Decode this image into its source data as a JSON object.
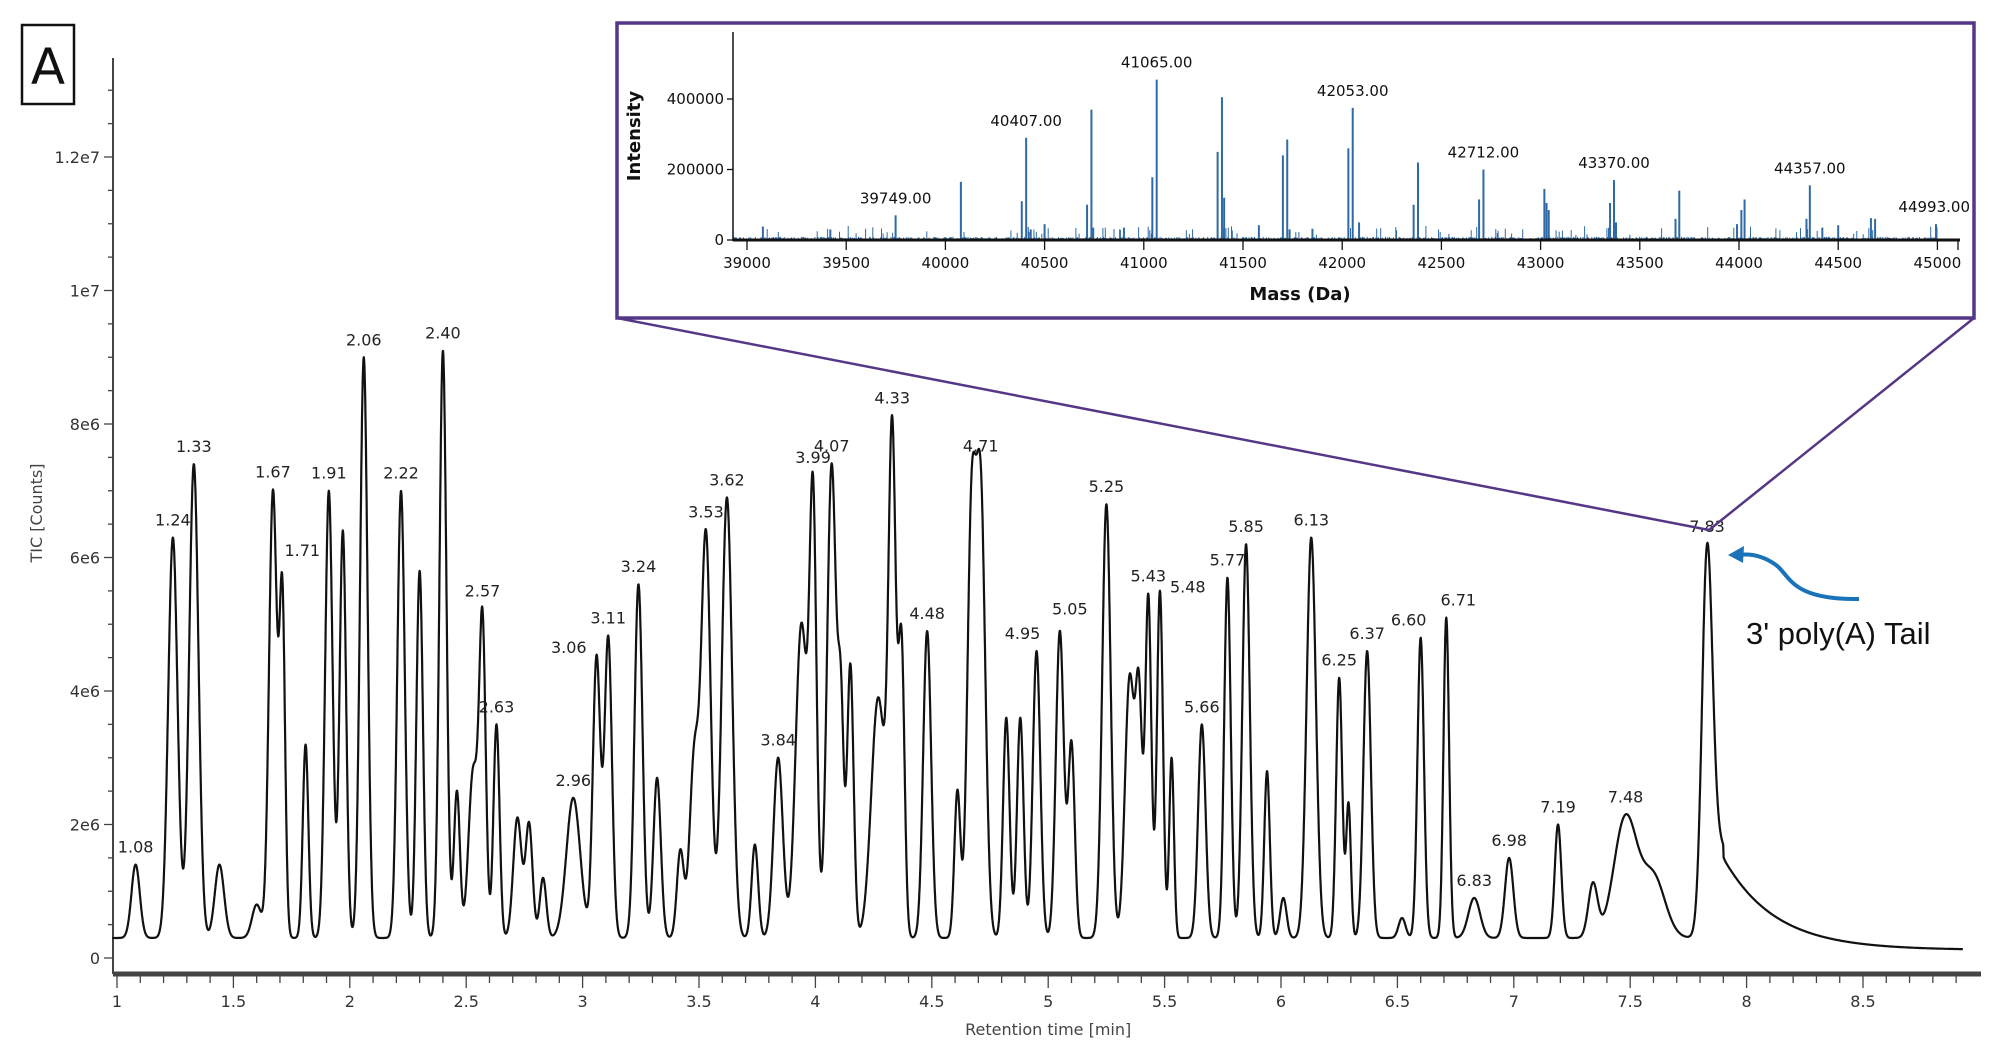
{
  "panel_label": "A",
  "annotation": {
    "text": "3' poly(A) Tail",
    "arrow_color": "#1a73b8"
  },
  "colors": {
    "trace": "#111111",
    "inset_box": "#553788",
    "spectrum": "#2f6aa6"
  },
  "chart_data": [
    {
      "type": "line",
      "title": "",
      "xlabel": "Retention time [min]",
      "ylabel": "TIC [Counts]",
      "xlim": [
        0.98,
        8.93
      ],
      "ylim": [
        0,
        13000000
      ],
      "x_ticks": [
        1,
        1.5,
        2,
        2.5,
        3,
        3.5,
        4,
        4.5,
        5,
        5.5,
        6,
        6.5,
        7,
        7.5,
        8,
        8.5
      ],
      "x_tick_labels": [
        "1",
        "1.5",
        "2",
        "2.5",
        "3",
        "3.5",
        "4",
        "4.5",
        "5",
        "5.5",
        "6",
        "6.5",
        "7",
        "7.5",
        "8",
        "8.5"
      ],
      "y_ticks": [
        0,
        2000000,
        4000000,
        6000000,
        8000000,
        10000000,
        12000000
      ],
      "y_tick_labels": [
        "0",
        "2e6",
        "4e6",
        "6e6",
        "8e6",
        "1e7",
        "1.2e7"
      ],
      "grid": false,
      "baseline_counts": 300000,
      "peaks": [
        {
          "rt": 1.08,
          "height": 1.1,
          "sigma": 0.018,
          "label": "1.08"
        },
        {
          "rt": 1.24,
          "height": 6.0,
          "sigma": 0.02,
          "label": "1.24"
        },
        {
          "rt": 1.33,
          "height": 7.1,
          "sigma": 0.02,
          "label": "1.33"
        },
        {
          "rt": 1.44,
          "height": 1.1,
          "sigma": 0.02
        },
        {
          "rt": 1.6,
          "height": 0.5,
          "sigma": 0.02
        },
        {
          "rt": 1.67,
          "height": 6.7,
          "sigma": 0.017,
          "label": "1.67"
        },
        {
          "rt": 1.71,
          "height": 5.0,
          "sigma": 0.012,
          "label": "1.71"
        },
        {
          "rt": 1.81,
          "height": 2.9,
          "sigma": 0.012
        },
        {
          "rt": 1.91,
          "height": 6.7,
          "sigma": 0.016,
          "label": "1.91"
        },
        {
          "rt": 1.97,
          "height": 6.1,
          "sigma": 0.014
        },
        {
          "rt": 2.06,
          "height": 8.7,
          "sigma": 0.016,
          "label": "2.06"
        },
        {
          "rt": 2.22,
          "height": 6.7,
          "sigma": 0.016,
          "label": "2.22"
        },
        {
          "rt": 2.3,
          "height": 5.5,
          "sigma": 0.014
        },
        {
          "rt": 2.4,
          "height": 8.8,
          "sigma": 0.015,
          "label": "2.40"
        },
        {
          "rt": 2.46,
          "height": 2.2,
          "sigma": 0.013
        },
        {
          "rt": 2.53,
          "height": 2.5,
          "sigma": 0.02
        },
        {
          "rt": 2.57,
          "height": 4.6,
          "sigma": 0.014,
          "label": "2.57"
        },
        {
          "rt": 2.63,
          "height": 3.2,
          "sigma": 0.013,
          "label": "2.63"
        },
        {
          "rt": 2.72,
          "height": 1.8,
          "sigma": 0.018
        },
        {
          "rt": 2.77,
          "height": 1.7,
          "sigma": 0.015
        },
        {
          "rt": 2.83,
          "height": 0.9,
          "sigma": 0.014
        },
        {
          "rt": 2.96,
          "height": 2.1,
          "sigma": 0.03,
          "label": "2.96"
        },
        {
          "rt": 3.06,
          "height": 4.2,
          "sigma": 0.016,
          "label": "3.06"
        },
        {
          "rt": 3.11,
          "height": 4.5,
          "sigma": 0.016,
          "label": "3.11"
        },
        {
          "rt": 3.24,
          "height": 5.3,
          "sigma": 0.017,
          "label": "3.24"
        },
        {
          "rt": 3.32,
          "height": 2.4,
          "sigma": 0.016
        },
        {
          "rt": 3.42,
          "height": 1.3,
          "sigma": 0.015
        },
        {
          "rt": 3.48,
          "height": 2.7,
          "sigma": 0.02
        },
        {
          "rt": 3.53,
          "height": 6.0,
          "sigma": 0.02,
          "label": "3.53"
        },
        {
          "rt": 3.62,
          "height": 6.6,
          "sigma": 0.022,
          "label": "3.62"
        },
        {
          "rt": 3.74,
          "height": 1.4,
          "sigma": 0.014
        },
        {
          "rt": 3.84,
          "height": 2.7,
          "sigma": 0.02,
          "label": "3.84"
        },
        {
          "rt": 3.94,
          "height": 4.7,
          "sigma": 0.025
        },
        {
          "rt": 3.99,
          "height": 6.3,
          "sigma": 0.015,
          "label": "3.99"
        },
        {
          "rt": 4.07,
          "height": 7.1,
          "sigma": 0.02,
          "label": "4.07"
        },
        {
          "rt": 4.11,
          "height": 3.0,
          "sigma": 0.012
        },
        {
          "rt": 4.15,
          "height": 4.1,
          "sigma": 0.014
        },
        {
          "rt": 4.27,
          "height": 3.6,
          "sigma": 0.03
        },
        {
          "rt": 4.33,
          "height": 7.3,
          "sigma": 0.016,
          "label": "4.33"
        },
        {
          "rt": 4.37,
          "height": 4.3,
          "sigma": 0.013
        },
        {
          "rt": 4.48,
          "height": 4.6,
          "sigma": 0.017,
          "label": "4.48"
        },
        {
          "rt": 4.61,
          "height": 2.2,
          "sigma": 0.013
        },
        {
          "rt": 4.67,
          "height": 6.0,
          "sigma": 0.018
        },
        {
          "rt": 4.71,
          "height": 6.6,
          "sigma": 0.02,
          "label": "4.71"
        },
        {
          "rt": 4.82,
          "height": 3.3,
          "sigma": 0.014
        },
        {
          "rt": 4.88,
          "height": 3.3,
          "sigma": 0.014
        },
        {
          "rt": 4.95,
          "height": 4.3,
          "sigma": 0.016,
          "label": "4.95"
        },
        {
          "rt": 5.05,
          "height": 4.6,
          "sigma": 0.017,
          "label": "5.05"
        },
        {
          "rt": 5.1,
          "height": 2.9,
          "sigma": 0.014
        },
        {
          "rt": 5.25,
          "height": 6.5,
          "sigma": 0.018,
          "label": "5.25"
        },
        {
          "rt": 5.35,
          "height": 3.9,
          "sigma": 0.02
        },
        {
          "rt": 5.39,
          "height": 3.4,
          "sigma": 0.014
        },
        {
          "rt": 5.43,
          "height": 5.1,
          "sigma": 0.013,
          "label": "5.43"
        },
        {
          "rt": 5.48,
          "height": 5.2,
          "sigma": 0.013,
          "label": "5.48"
        },
        {
          "rt": 5.53,
          "height": 2.7,
          "sigma": 0.01
        },
        {
          "rt": 5.66,
          "height": 3.2,
          "sigma": 0.016,
          "label": "5.66"
        },
        {
          "rt": 5.77,
          "height": 5.4,
          "sigma": 0.014,
          "label": "5.77"
        },
        {
          "rt": 5.85,
          "height": 5.9,
          "sigma": 0.016,
          "label": "5.85"
        },
        {
          "rt": 5.94,
          "height": 2.5,
          "sigma": 0.012
        },
        {
          "rt": 6.01,
          "height": 0.6,
          "sigma": 0.014
        },
        {
          "rt": 6.13,
          "height": 6.0,
          "sigma": 0.02,
          "label": "6.13"
        },
        {
          "rt": 6.25,
          "height": 3.9,
          "sigma": 0.013,
          "label": "6.25"
        },
        {
          "rt": 6.29,
          "height": 2.0,
          "sigma": 0.01
        },
        {
          "rt": 6.37,
          "height": 4.3,
          "sigma": 0.016,
          "label": "6.37"
        },
        {
          "rt": 6.52,
          "height": 0.3,
          "sigma": 0.015
        },
        {
          "rt": 6.6,
          "height": 4.5,
          "sigma": 0.014,
          "label": "6.60"
        },
        {
          "rt": 6.71,
          "height": 4.8,
          "sigma": 0.012,
          "label": "6.71"
        },
        {
          "rt": 6.83,
          "height": 0.6,
          "sigma": 0.025,
          "label": "6.83"
        },
        {
          "rt": 6.98,
          "height": 1.2,
          "sigma": 0.018,
          "label": "6.98"
        },
        {
          "rt": 7.19,
          "height": 1.7,
          "sigma": 0.014,
          "label": "7.19"
        },
        {
          "rt": 7.34,
          "height": 0.8,
          "sigma": 0.02
        },
        {
          "rt": 7.48,
          "height": 1.8,
          "sigma": 0.05,
          "label": "7.48"
        },
        {
          "rt": 7.6,
          "height": 0.9,
          "sigma": 0.05
        },
        {
          "rt": 7.83,
          "height": 5.6,
          "sigma": 0.022,
          "label": "7.83"
        }
      ],
      "tail": {
        "start_rt": 7.83,
        "amplitude": 1.9,
        "decay_min": 0.22,
        "floor": 0.1
      },
      "height_units": "1e6 counts"
    },
    {
      "type": "bar",
      "title": "",
      "xlabel": "Mass (Da)",
      "ylabel": "Intensity",
      "xlim": [
        38920,
        45180
      ],
      "ylim": [
        0,
        580000
      ],
      "x_ticks": [
        39000,
        39500,
        40000,
        40500,
        41000,
        41500,
        42000,
        42500,
        43000,
        43500,
        44000,
        44500,
        45000
      ],
      "x_tick_labels": [
        "39000",
        "39500",
        "40000",
        "40500",
        "41000",
        "41500",
        "42000",
        "42500",
        "43000",
        "43500",
        "44000",
        "44500",
        "45000"
      ],
      "y_ticks": [
        0,
        200000,
        400000
      ],
      "y_tick_labels": [
        "0",
        "200000",
        "400000"
      ],
      "labeled_peaks": [
        {
          "mass": 39749,
          "intensity": 70000,
          "label": "39749.00"
        },
        {
          "mass": 40407,
          "intensity": 290000,
          "label": "40407.00"
        },
        {
          "mass": 41065,
          "intensity": 455000,
          "label": "41065.00"
        },
        {
          "mass": 42053,
          "intensity": 375000,
          "label": "42053.00"
        },
        {
          "mass": 42712,
          "intensity": 200000,
          "label": "42712.00"
        },
        {
          "mass": 43370,
          "intensity": 170000,
          "label": "43370.00"
        },
        {
          "mass": 44357,
          "intensity": 155000,
          "label": "44357.00"
        },
        {
          "mass": 44993,
          "intensity": 45000,
          "label": "44993.00"
        }
      ],
      "other_peaks": [
        [
          39080,
          38000
        ],
        [
          39420,
          30000
        ],
        [
          40078,
          165000
        ],
        [
          40385,
          110000
        ],
        [
          40430,
          30000
        ],
        [
          40500,
          45000
        ],
        [
          40714,
          100000
        ],
        [
          40736,
          370000
        ],
        [
          40745,
          35000
        ],
        [
          40900,
          35000
        ],
        [
          41043,
          178000
        ],
        [
          41372,
          250000
        ],
        [
          41394,
          405000
        ],
        [
          41405,
          120000
        ],
        [
          41580,
          42000
        ],
        [
          41701,
          240000
        ],
        [
          41723,
          285000
        ],
        [
          41735,
          30000
        ],
        [
          41850,
          32000
        ],
        [
          42031,
          260000
        ],
        [
          42085,
          50000
        ],
        [
          42360,
          100000
        ],
        [
          42382,
          220000
        ],
        [
          42690,
          115000
        ],
        [
          43019,
          145000
        ],
        [
          43030,
          105000
        ],
        [
          43041,
          85000
        ],
        [
          43350,
          105000
        ],
        [
          43380,
          50000
        ],
        [
          43680,
          60000
        ],
        [
          43699,
          140000
        ],
        [
          43990,
          45000
        ],
        [
          44012,
          85000
        ],
        [
          44028,
          115000
        ],
        [
          44340,
          60000
        ],
        [
          44420,
          35000
        ],
        [
          44500,
          42000
        ],
        [
          44665,
          62000
        ],
        [
          44686,
          60000
        ]
      ]
    }
  ]
}
